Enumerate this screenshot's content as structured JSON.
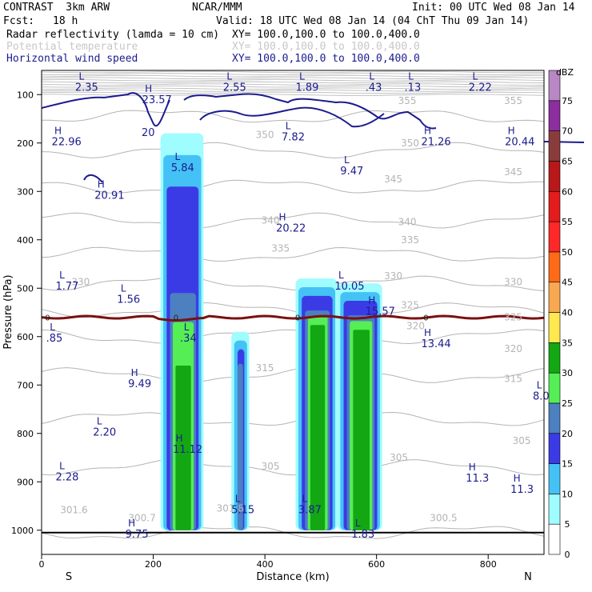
{
  "header": {
    "model": "CONTRAST  3km ARW",
    "agency": "NCAR/MMM",
    "init": "Init: 00 UTC Wed 08 Jan 14",
    "fcst_label": "Fcst:",
    "fcst_value": "18 h",
    "valid": "Valid: 18 UTC Wed 08 Jan 14 (04 ChT Thu 09 Jan 14)"
  },
  "fields": [
    {
      "label": "Radar reflectivity (lamda = 10 cm)",
      "xy": "XY= 100.0,100.0 to 100.0,400.0",
      "color": "#000000"
    },
    {
      "label": "Potential temperature",
      "xy": "XY= 100.0,100.0 to 100.0,400.0",
      "color": "#c8c8c8"
    },
    {
      "label": "Horizontal wind speed",
      "xy": "XY= 100.0,100.0 to 100.0,400.0",
      "color": "#1b1b8f"
    }
  ],
  "colors": {
    "theta": "#b4b4b4",
    "wind": "#1b1b8f",
    "freezing": "#7a1010"
  },
  "chart_data": {
    "type": "heatmap",
    "title": "",
    "xlabel": "Distance (km)",
    "ylabel": "Pressure (hPa)",
    "xlim": [
      0,
      900
    ],
    "ylim": [
      1050,
      50
    ],
    "x_ticks": [
      0,
      200,
      400,
      600,
      800
    ],
    "y_ticks": [
      100,
      200,
      300,
      400,
      500,
      600,
      700,
      800,
      900,
      1000
    ],
    "x_end_labels": [
      "S",
      "N"
    ],
    "colorbar": {
      "title": "dBZ",
      "levels": [
        0,
        5,
        10,
        15,
        20,
        25,
        30,
        35,
        40,
        45,
        50,
        55,
        60,
        65,
        70,
        75
      ],
      "colors": [
        "#ffffff",
        "#9ffcff",
        "#45c2f5",
        "#3b3be6",
        "#4c80c0",
        "#55ee55",
        "#13a813",
        "#ffe850",
        "#f8a850",
        "#ff6a18",
        "#ff2828",
        "#e41c1c",
        "#b81818",
        "#8a3c3c",
        "#8c2e9e",
        "#b888c4"
      ]
    },
    "reflectivity_cells": [
      {
        "x0": 213,
        "x1": 290,
        "p_top": 180,
        "p_bot": 1000
      },
      {
        "x0": 340,
        "x1": 372,
        "p_top": 590,
        "p_bot": 1000
      },
      {
        "x0": 455,
        "x1": 530,
        "p_top": 480,
        "p_bot": 1000
      },
      {
        "x0": 530,
        "x1": 610,
        "p_top": 490,
        "p_bot": 1000
      }
    ],
    "theta_contours": [
      {
        "value": 300,
        "label": "300"
      },
      {
        "value": 305,
        "label": "305"
      },
      {
        "value": 310,
        "label": "310"
      },
      {
        "value": 315,
        "label": "315"
      },
      {
        "value": 320,
        "label": "320"
      },
      {
        "value": 325,
        "label": "325"
      },
      {
        "value": 330,
        "label": "330"
      },
      {
        "value": 335,
        "label": "335"
      },
      {
        "value": 340,
        "label": "340"
      },
      {
        "value": 345,
        "label": "345"
      },
      {
        "value": 350,
        "label": "350"
      },
      {
        "value": 355,
        "label": "355"
      }
    ],
    "theta_labels": [
      {
        "text": "355",
        "x": 655,
        "p": 113
      },
      {
        "text": "355",
        "x": 845,
        "p": 113
      },
      {
        "text": "350",
        "x": 400,
        "p": 183
      },
      {
        "text": "350",
        "x": 660,
        "p": 200
      },
      {
        "text": "345",
        "x": 845,
        "p": 260
      },
      {
        "text": "345",
        "x": 630,
        "p": 275
      },
      {
        "text": "340",
        "x": 410,
        "p": 360
      },
      {
        "text": "340",
        "x": 655,
        "p": 363
      },
      {
        "text": "335",
        "x": 428,
        "p": 418
      },
      {
        "text": "335",
        "x": 660,
        "p": 400
      },
      {
        "text": "330",
        "x": 70,
        "p": 487
      },
      {
        "text": "330",
        "x": 630,
        "p": 475
      },
      {
        "text": "330",
        "x": 845,
        "p": 487
      },
      {
        "text": "325",
        "x": 660,
        "p": 535
      },
      {
        "text": "325",
        "x": 845,
        "p": 560
      },
      {
        "text": "320",
        "x": 670,
        "p": 578
      },
      {
        "text": "320",
        "x": 845,
        "p": 625
      },
      {
        "text": "315",
        "x": 400,
        "p": 665
      },
      {
        "text": "315",
        "x": 845,
        "p": 687
      },
      {
        "text": "305",
        "x": 410,
        "p": 868
      },
      {
        "text": "305",
        "x": 640,
        "p": 850
      },
      {
        "text": "305",
        "x": 860,
        "p": 815
      },
      {
        "text": "301.6",
        "x": 58,
        "p": 958
      },
      {
        "text": "300.7",
        "x": 180,
        "p": 975
      },
      {
        "text": "301.8",
        "x": 338,
        "p": 955
      },
      {
        "text": "300.5",
        "x": 720,
        "p": 975
      }
    ],
    "wind_contour_value": "20",
    "freezing_level": {
      "label": "0",
      "p": 560
    },
    "extrema": [
      {
        "type": "L",
        "value": "2.35",
        "x": 60,
        "p": 82
      },
      {
        "type": "H",
        "value": "23.57",
        "x": 180,
        "p": 108
      },
      {
        "type": "L",
        "value": "2.55",
        "x": 325,
        "p": 82
      },
      {
        "type": "L",
        "value": "1.89",
        "x": 455,
        "p": 82
      },
      {
        "type": "L",
        "value": ".43",
        "x": 580,
        "p": 82
      },
      {
        "type": "L",
        "value": ".13",
        "x": 650,
        "p": 82
      },
      {
        "type": "L",
        "value": "2.22",
        "x": 765,
        "p": 82
      },
      {
        "type": "H",
        "value": "22.96",
        "x": 18,
        "p": 195
      },
      {
        "type": "L",
        "value": "7.82",
        "x": 430,
        "p": 185
      },
      {
        "type": "H",
        "value": "21.26",
        "x": 680,
        "p": 195
      },
      {
        "type": "H",
        "value": "20.44",
        "x": 830,
        "p": 195
      },
      {
        "type": "L",
        "value": "5.84",
        "x": 232,
        "p": 248
      },
      {
        "type": "L",
        "value": "9.47",
        "x": 535,
        "p": 255
      },
      {
        "type": "H",
        "value": "20.91",
        "x": 95,
        "p": 305
      },
      {
        "type": "H",
        "value": "20.22",
        "x": 420,
        "p": 373
      },
      {
        "type": "L",
        "value": "1.77",
        "x": 25,
        "p": 493
      },
      {
        "type": "L",
        "value": "10.05",
        "x": 525,
        "p": 493
      },
      {
        "type": "L",
        "value": "1.56",
        "x": 135,
        "p": 520
      },
      {
        "type": "H",
        "value": "15.57",
        "x": 580,
        "p": 545
      },
      {
        "type": "L",
        "value": ".85",
        "x": 8,
        "p": 600
      },
      {
        "type": "L",
        "value": ".34",
        "x": 248,
        "p": 600
      },
      {
        "type": "H",
        "value": "13.44",
        "x": 680,
        "p": 612
      },
      {
        "type": "H",
        "value": "9.49",
        "x": 155,
        "p": 695
      },
      {
        "type": "L",
        "value": "8.0",
        "x": 880,
        "p": 720
      },
      {
        "type": "L",
        "value": "2.20",
        "x": 92,
        "p": 795
      },
      {
        "type": "H",
        "value": "11.12",
        "x": 235,
        "p": 830
      },
      {
        "type": "L",
        "value": "2.28",
        "x": 25,
        "p": 887
      },
      {
        "type": "H",
        "value": "11.3",
        "x": 760,
        "p": 890
      },
      {
        "type": "H",
        "value": "11.3",
        "x": 840,
        "p": 913
      },
      {
        "type": "L",
        "value": "5.15",
        "x": 340,
        "p": 955
      },
      {
        "type": "L",
        "value": "3.87",
        "x": 460,
        "p": 955
      },
      {
        "type": "H",
        "value": "9.75",
        "x": 150,
        "p": 1005
      },
      {
        "type": "L",
        "value": "1.83",
        "x": 555,
        "p": 1005
      }
    ]
  }
}
